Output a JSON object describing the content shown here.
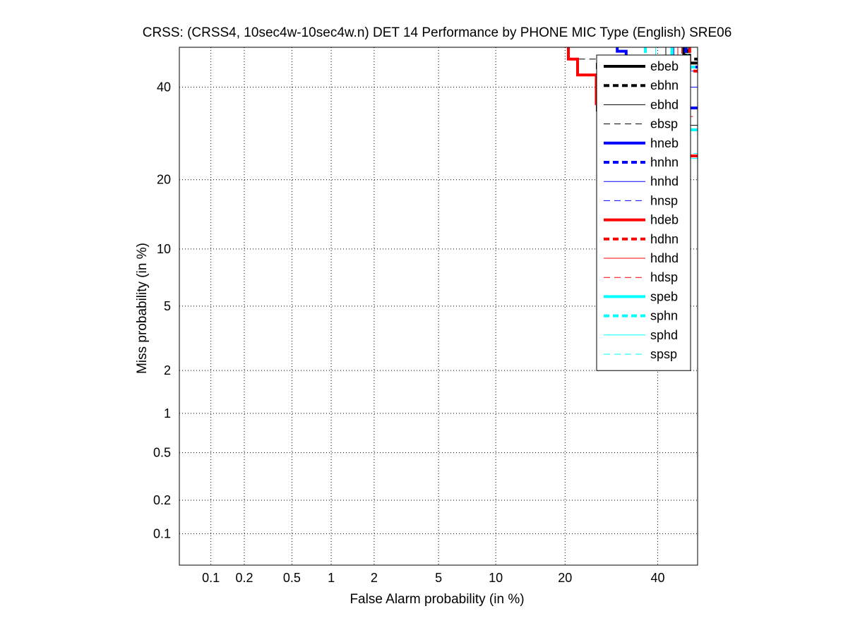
{
  "chart_data": {
    "type": "line",
    "title": "CRSS: (CRSS4, 10sec4w-10sec4w.n) DET 14 Performance by PHONE MIC Type (English) SRE06",
    "xlabel": "False Alarm probability (in %)",
    "ylabel": "Miss probability (in %)",
    "scale": "normal-deviate (probit)",
    "xlim": [
      0.05,
      50
    ],
    "ylim": [
      0.05,
      50
    ],
    "grid": true,
    "legend_position": "top-right",
    "x_ticks": [
      0.1,
      0.2,
      0.5,
      1,
      2,
      5,
      10,
      20,
      40
    ],
    "x_tick_labels": [
      "0.1",
      "0.2",
      "0.5",
      "1",
      "2",
      "5",
      "10",
      "20",
      "40"
    ],
    "y_ticks": [
      0.1,
      0.2,
      0.5,
      1,
      2,
      5,
      10,
      20,
      40
    ],
    "y_tick_labels": [
      "0.1",
      "0.2",
      "0.5",
      "1",
      "2",
      "5",
      "10",
      "20",
      "40"
    ],
    "series": [
      {
        "name": "ebeb",
        "color": "#000000",
        "style": "solid",
        "weight": "thick",
        "points": [
          [
            46.5,
            50
          ],
          [
            46.5,
            48
          ],
          [
            48,
            48
          ],
          [
            48,
            46
          ],
          [
            50,
            46
          ]
        ]
      },
      {
        "name": "ebhn",
        "color": "#000000",
        "style": "dashed",
        "weight": "thick",
        "points": [
          [
            47.5,
            50
          ],
          [
            47.5,
            47
          ],
          [
            50,
            47
          ]
        ]
      },
      {
        "name": "ebhd",
        "color": "#000000",
        "style": "solid",
        "weight": "thin",
        "points": [
          [
            42,
            50
          ],
          [
            42,
            36
          ],
          [
            46,
            36
          ],
          [
            46,
            31
          ],
          [
            50,
            31
          ]
        ]
      },
      {
        "name": "ebsp",
        "color": "#000000",
        "style": "dashed",
        "weight": "thin",
        "points": [
          [
            15.5,
            50
          ],
          [
            20.5,
            50
          ],
          [
            20.5,
            47
          ],
          [
            26,
            47
          ],
          [
            26,
            34
          ],
          [
            30,
            34
          ]
        ]
      },
      {
        "name": "hneb",
        "color": "#0000ff",
        "style": "solid",
        "weight": "thick",
        "points": [
          [
            30.5,
            50
          ],
          [
            30.5,
            49
          ],
          [
            32.5,
            49
          ],
          [
            32.5,
            47
          ],
          [
            34,
            47
          ],
          [
            34,
            42
          ],
          [
            47,
            42
          ],
          [
            47,
            35
          ],
          [
            50,
            35
          ]
        ]
      },
      {
        "name": "hnhn",
        "color": "#0000ff",
        "style": "dashed",
        "weight": "thick",
        "points": [
          [
            47,
            50
          ],
          [
            47,
            45
          ],
          [
            50,
            45
          ]
        ]
      },
      {
        "name": "hnhd",
        "color": "#0000ff",
        "style": "solid",
        "weight": "thin",
        "points": [
          [
            44,
            50
          ],
          [
            44,
            40
          ],
          [
            50,
            40
          ]
        ]
      },
      {
        "name": "hnsp",
        "color": "#0000ff",
        "style": "dashed",
        "weight": "thin",
        "points": [
          [
            36,
            50
          ],
          [
            45,
            50
          ],
          [
            45,
            44
          ],
          [
            50,
            44
          ]
        ]
      },
      {
        "name": "hdeb",
        "color": "#ff0000",
        "style": "solid",
        "weight": "thick",
        "points": [
          [
            20.6,
            50
          ],
          [
            20.6,
            47
          ],
          [
            22.3,
            47
          ],
          [
            22.3,
            43
          ],
          [
            26,
            43
          ],
          [
            26,
            36
          ],
          [
            28,
            36
          ],
          [
            28,
            29
          ],
          [
            45,
            29
          ],
          [
            45,
            24.5
          ],
          [
            50,
            24.5
          ]
        ]
      },
      {
        "name": "hdhn",
        "color": "#ff0000",
        "style": "dashed",
        "weight": "thick",
        "points": [
          [
            48,
            50
          ],
          [
            48,
            44
          ],
          [
            50,
            44
          ]
        ]
      },
      {
        "name": "hdhd",
        "color": "#ff0000",
        "style": "solid",
        "weight": "thin",
        "points": [
          [
            45,
            50
          ],
          [
            45,
            30
          ],
          [
            50,
            30
          ]
        ]
      },
      {
        "name": "hdsp",
        "color": "#ff0000",
        "style": "dashed",
        "weight": "thin",
        "points": [
          [
            46,
            50
          ],
          [
            46,
            33
          ],
          [
            50,
            33
          ]
        ]
      },
      {
        "name": "speb",
        "color": "#00ffff",
        "style": "solid",
        "weight": "thick",
        "points": [
          [
            43.5,
            50
          ],
          [
            43.5,
            40
          ],
          [
            46,
            40
          ],
          [
            46,
            30
          ],
          [
            50,
            30
          ]
        ]
      },
      {
        "name": "sphn",
        "color": "#00ffff",
        "style": "dashed",
        "weight": "thick",
        "points": [
          [
            37,
            50
          ],
          [
            37,
            47
          ],
          [
            40,
            47
          ],
          [
            40,
            45
          ],
          [
            50,
            45
          ]
        ]
      },
      {
        "name": "sphd",
        "color": "#00ffff",
        "style": "solid",
        "weight": "thin",
        "points": [
          [
            39.5,
            50
          ],
          [
            39.5,
            48
          ],
          [
            45,
            48
          ],
          [
            45,
            24
          ],
          [
            50,
            24
          ]
        ]
      },
      {
        "name": "spsp",
        "color": "#00ffff",
        "style": "dashed",
        "weight": "thin",
        "points": [
          [
            38.5,
            50
          ],
          [
            47.5,
            50
          ],
          [
            47.5,
            25
          ],
          [
            50,
            25
          ]
        ]
      }
    ]
  }
}
